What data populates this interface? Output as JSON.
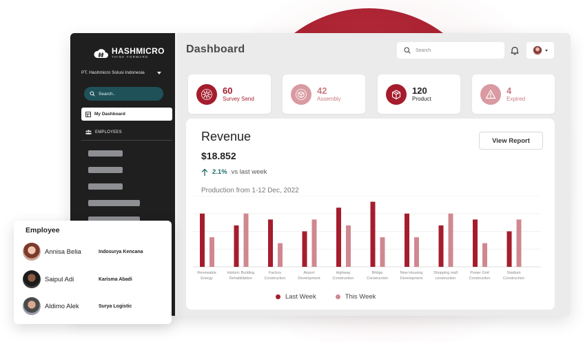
{
  "sidebar": {
    "logo_name": "HASHMICRO",
    "logo_tagline": "THINK FORWARD",
    "company": "PT. Hashmicro Solusi Indonesia",
    "search_placeholder": "Search..",
    "active_item": "My Dashboard",
    "section_label": "EMPLOYEES"
  },
  "header": {
    "title": "Dashboard",
    "search_placeholder": "Search"
  },
  "stats": [
    {
      "value": "60",
      "label": "Survey Send",
      "icon": "gear-icon",
      "color": "#a51d2d"
    },
    {
      "value": "42",
      "label": "Assembly",
      "icon": "box-icon",
      "color": "#c97b84"
    },
    {
      "value": "120",
      "label": "Product",
      "icon": "package-icon",
      "color": "#a51d2d"
    },
    {
      "value": "4",
      "label": "Expired",
      "icon": "warning-icon",
      "color": "#c97b84"
    }
  ],
  "revenue": {
    "title": "Revenue",
    "amount": "$18.852",
    "change_pct": "2.1%",
    "change_text": "vs last week",
    "production_label": "Production from 1-12 Dec, 2022",
    "view_report": "View Report"
  },
  "chart_data": {
    "type": "bar",
    "categories": [
      [
        "Renewable",
        "Energy"
      ],
      [
        "Historic Building",
        "Rehabilitation"
      ],
      [
        "Factory",
        "Construction"
      ],
      [
        "Airport",
        "Development"
      ],
      [
        "Highway",
        "Construction"
      ],
      [
        "Bridge",
        "Construction"
      ],
      [
        "New Housing",
        "Development"
      ],
      [
        "Shopping mall",
        "construction"
      ],
      [
        "Power Grid",
        "Construction"
      ],
      [
        "Stadium",
        "Construction"
      ]
    ],
    "series": [
      {
        "name": "Last Week",
        "color": "#a51d2d",
        "values": [
          90,
          70,
          80,
          60,
          100,
          110,
          90,
          70,
          80,
          60
        ]
      },
      {
        "name": "This Week",
        "color": "#d08890",
        "values": [
          50,
          90,
          40,
          80,
          70,
          50,
          50,
          90,
          40,
          80
        ]
      }
    ],
    "ylim": [
      0,
      120
    ]
  },
  "employee_card": {
    "title": "Employee",
    "rows": [
      {
        "name": "Annisa Belia",
        "company": "Indosurya Kencana"
      },
      {
        "name": "Saipul Adi",
        "company": "Karisma Abadi"
      },
      {
        "name": "Aldimo Alek",
        "company": "Surya Logistic"
      }
    ]
  }
}
